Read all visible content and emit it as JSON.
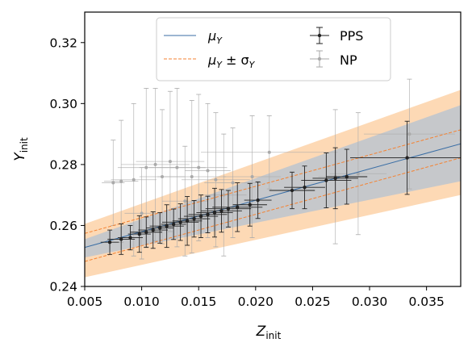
{
  "chart_data": {
    "type": "scatter",
    "title": "",
    "xlabel": {
      "main": "Z",
      "sub": "init"
    },
    "ylabel": {
      "main": "Y",
      "sub": "init"
    },
    "xlim": [
      0.005,
      0.038
    ],
    "ylim": [
      0.24,
      0.33
    ],
    "xticks": [
      0.005,
      0.01,
      0.015,
      0.02,
      0.025,
      0.03,
      0.035
    ],
    "xtick_labels": [
      "0.005",
      "0.010",
      "0.015",
      "0.020",
      "0.025",
      "0.030",
      "0.035"
    ],
    "yticks": [
      0.24,
      0.26,
      0.28,
      0.3,
      0.32
    ],
    "ytick_labels": [
      "0.24",
      "0.26",
      "0.28",
      "0.30",
      "0.32"
    ],
    "grid": false,
    "legend_position": "top-center",
    "legend": [
      {
        "label": "μ",
        "sub": "Y",
        "suffix": "",
        "kind": "line",
        "color": "#3a6ea5"
      },
      {
        "label": "μ",
        "sub": "Y",
        "suffix": " ± σ",
        "suffix_sub": "Y",
        "kind": "dashed",
        "color": "#f58231"
      },
      {
        "label": "PPS",
        "kind": "errorbar",
        "color": "#222222"
      },
      {
        "label": "NP",
        "kind": "errorbar",
        "color": "#aaaaaa"
      }
    ],
    "colors": {
      "mean": "#3a6ea5",
      "sigma": "#f58231",
      "band_outer": "#fdd9b5",
      "band_inner": "#c6c8cb",
      "pps": "#222222",
      "np": "#aaaaaa"
    },
    "mean_line": {
      "x": [
        0.005,
        0.038
      ],
      "y": [
        0.2528,
        0.2868
      ]
    },
    "sigma_upper": {
      "x": [
        0.005,
        0.038
      ],
      "y": [
        0.2574,
        0.2914
      ]
    },
    "sigma_lower": {
      "x": [
        0.005,
        0.038
      ],
      "y": [
        0.2482,
        0.2822
      ]
    },
    "band_inner_upper": {
      "x": [
        0.005,
        0.038
      ],
      "y": [
        0.2555,
        0.2995
      ]
    },
    "band_inner_lower": {
      "x": [
        0.005,
        0.038
      ],
      "y": [
        0.2495,
        0.2745
      ]
    },
    "band_outer_upper": {
      "x": [
        0.005,
        0.038
      ],
      "y": [
        0.2605,
        0.3045
      ]
    },
    "band_outer_lower": {
      "x": [
        0.005,
        0.038
      ],
      "y": [
        0.243,
        0.27
      ]
    },
    "series": [
      {
        "name": "PPS",
        "points": [
          {
            "x": 0.0072,
            "y": 0.2545,
            "xerr": 0.0008,
            "yerr": 0.004
          },
          {
            "x": 0.0082,
            "y": 0.2555,
            "xerr": 0.0012,
            "yerr": 0.005
          },
          {
            "x": 0.009,
            "y": 0.256,
            "xerr": 0.0011,
            "yerr": 0.004
          },
          {
            "x": 0.0098,
            "y": 0.2572,
            "xerr": 0.001,
            "yerr": 0.006
          },
          {
            "x": 0.0104,
            "y": 0.2578,
            "xerr": 0.0014,
            "yerr": 0.005
          },
          {
            "x": 0.011,
            "y": 0.2585,
            "xerr": 0.0013,
            "yerr": 0.006
          },
          {
            "x": 0.0116,
            "y": 0.2592,
            "xerr": 0.0012,
            "yerr": 0.005
          },
          {
            "x": 0.0122,
            "y": 0.2598,
            "xerr": 0.0015,
            "yerr": 0.007
          },
          {
            "x": 0.0128,
            "y": 0.2604,
            "xerr": 0.0011,
            "yerr": 0.005
          },
          {
            "x": 0.0134,
            "y": 0.2611,
            "xerr": 0.0016,
            "yerr": 0.006
          },
          {
            "x": 0.014,
            "y": 0.2615,
            "xerr": 0.0013,
            "yerr": 0.008
          },
          {
            "x": 0.0146,
            "y": 0.2622,
            "xerr": 0.0014,
            "yerr": 0.006
          },
          {
            "x": 0.0152,
            "y": 0.263,
            "xerr": 0.0015,
            "yerr": 0.007
          },
          {
            "x": 0.0158,
            "y": 0.2636,
            "xerr": 0.0017,
            "yerr": 0.006
          },
          {
            "x": 0.0164,
            "y": 0.2642,
            "xerr": 0.0016,
            "yerr": 0.008
          },
          {
            "x": 0.017,
            "y": 0.2648,
            "xerr": 0.0018,
            "yerr": 0.007
          },
          {
            "x": 0.0176,
            "y": 0.2655,
            "xerr": 0.002,
            "yerr": 0.006
          },
          {
            "x": 0.0184,
            "y": 0.266,
            "xerr": 0.0022,
            "yerr": 0.008
          },
          {
            "x": 0.0195,
            "y": 0.2668,
            "xerr": 0.0015,
            "yerr": 0.007
          },
          {
            "x": 0.0202,
            "y": 0.2683,
            "xerr": 0.0012,
            "yerr": 0.006
          },
          {
            "x": 0.0232,
            "y": 0.2715,
            "xerr": 0.002,
            "yerr": 0.006
          },
          {
            "x": 0.0243,
            "y": 0.2725,
            "xerr": 0.0018,
            "yerr": 0.007
          },
          {
            "x": 0.0262,
            "y": 0.2748,
            "xerr": 0.0022,
            "yerr": 0.009
          },
          {
            "x": 0.027,
            "y": 0.2755,
            "xerr": 0.002,
            "yerr": 0.01
          },
          {
            "x": 0.028,
            "y": 0.276,
            "xerr": 0.0018,
            "yerr": 0.009
          },
          {
            "x": 0.0333,
            "y": 0.2822,
            "xerr": 0.005,
            "yerr": 0.012
          }
        ]
      },
      {
        "name": "NP",
        "points": [
          {
            "x": 0.0075,
            "y": 0.274,
            "xerr": 0.001,
            "yerr": 0.014
          },
          {
            "x": 0.0082,
            "y": 0.2745,
            "xerr": 0.0015,
            "yerr": 0.02
          },
          {
            "x": 0.0093,
            "y": 0.275,
            "xerr": 0.002,
            "yerr": 0.025
          },
          {
            "x": 0.01,
            "y": 0.264,
            "xerr": 0.0015,
            "yerr": 0.015
          },
          {
            "x": 0.0104,
            "y": 0.279,
            "xerr": 0.0025,
            "yerr": 0.026
          },
          {
            "x": 0.0112,
            "y": 0.28,
            "xerr": 0.003,
            "yerr": 0.025
          },
          {
            "x": 0.0118,
            "y": 0.276,
            "xerr": 0.002,
            "yerr": 0.022
          },
          {
            "x": 0.0125,
            "y": 0.281,
            "xerr": 0.003,
            "yerr": 0.023
          },
          {
            "x": 0.0131,
            "y": 0.279,
            "xerr": 0.0025,
            "yerr": 0.026
          },
          {
            "x": 0.0138,
            "y": 0.268,
            "xerr": 0.002,
            "yerr": 0.018
          },
          {
            "x": 0.0144,
            "y": 0.276,
            "xerr": 0.003,
            "yerr": 0.025
          },
          {
            "x": 0.015,
            "y": 0.279,
            "xerr": 0.0025,
            "yerr": 0.024
          },
          {
            "x": 0.0158,
            "y": 0.278,
            "xerr": 0.002,
            "yerr": 0.022
          },
          {
            "x": 0.0165,
            "y": 0.275,
            "xerr": 0.003,
            "yerr": 0.022
          },
          {
            "x": 0.0172,
            "y": 0.27,
            "xerr": 0.002,
            "yerr": 0.02
          },
          {
            "x": 0.018,
            "y": 0.274,
            "xerr": 0.0025,
            "yerr": 0.018
          },
          {
            "x": 0.0197,
            "y": 0.276,
            "xerr": 0.0025,
            "yerr": 0.02
          },
          {
            "x": 0.0212,
            "y": 0.284,
            "xerr": 0.006,
            "yerr": 0.012
          },
          {
            "x": 0.027,
            "y": 0.276,
            "xerr": 0.0015,
            "yerr": 0.022
          },
          {
            "x": 0.029,
            "y": 0.277,
            "xerr": 0.0025,
            "yerr": 0.02
          },
          {
            "x": 0.0335,
            "y": 0.29,
            "xerr": 0.004,
            "yerr": 0.018
          }
        ]
      }
    ]
  }
}
